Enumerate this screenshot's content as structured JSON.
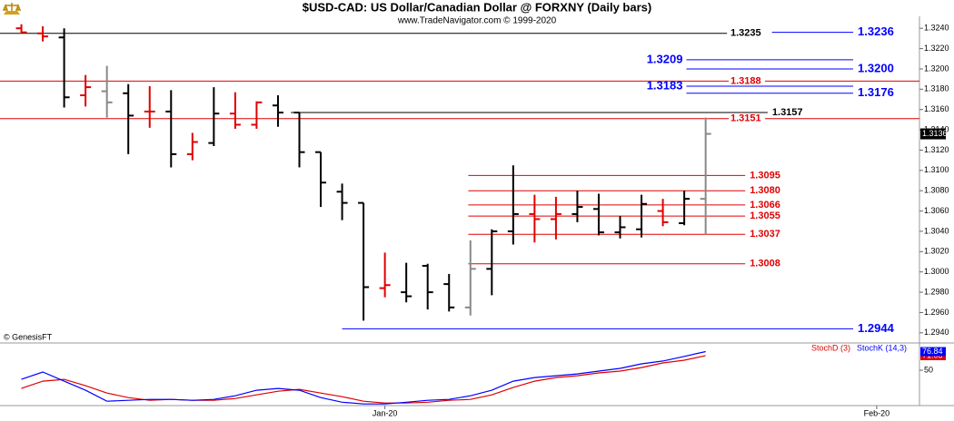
{
  "chart_data": {
    "type": "ohlc",
    "title": "$USD-CAD:  US Dollar/Canadian Dollar @ FORXNY  (Daily bars)",
    "subtitle": "www.TradeNavigator.com © 1999-2020",
    "credit": "© GenesisFT",
    "xlim": [
      -1,
      42
    ],
    "xticks": [
      {
        "value": 17,
        "label": "Jan-20"
      },
      {
        "value": 40,
        "label": "Feb-20"
      }
    ],
    "ylim": [
      1.293,
      1.325
    ],
    "yticks": [
      {
        "value": 1.294,
        "label": "1.2940"
      },
      {
        "value": 1.296,
        "label": "1.2960"
      },
      {
        "value": 1.298,
        "label": "1.2980"
      },
      {
        "value": 1.3,
        "label": "1.3000"
      },
      {
        "value": 1.302,
        "label": "1.3020"
      },
      {
        "value": 1.304,
        "label": "1.3040"
      },
      {
        "value": 1.306,
        "label": "1.3060"
      },
      {
        "value": 1.308,
        "label": "1.3080"
      },
      {
        "value": 1.31,
        "label": "1.3100"
      },
      {
        "value": 1.312,
        "label": "1.3120"
      },
      {
        "value": 1.314,
        "label": "1.3140"
      },
      {
        "value": 1.316,
        "label": "1.3160"
      },
      {
        "value": 1.318,
        "label": "1.3180"
      },
      {
        "value": 1.32,
        "label": "1.3200"
      },
      {
        "value": 1.322,
        "label": "1.3220"
      },
      {
        "value": 1.324,
        "label": "1.3240"
      }
    ],
    "bars": {
      "open": [
        1.324,
        1.3235,
        1.3231,
        1.3174,
        1.3178,
        1.3176,
        1.3158,
        1.3158,
        1.3116,
        1.3127,
        1.3156,
        1.3145,
        1.3164,
        1.3157,
        1.3118,
        1.3079,
        1.3068,
        1.2984,
        1.298,
        1.3006,
        1.2988,
        1.2965,
        1.3003,
        1.304,
        1.3057,
        1.3052,
        1.3057,
        1.3062,
        1.3039,
        1.3042,
        1.306,
        1.3048,
        1.3072
      ],
      "high": [
        1.3244,
        1.3242,
        1.324,
        1.3194,
        1.3203,
        1.3185,
        1.3183,
        1.3179,
        1.3137,
        1.3182,
        1.3177,
        1.3168,
        1.3174,
        1.3157,
        1.3118,
        1.3087,
        1.3068,
        1.3019,
        1.3009,
        1.3008,
        1.2998,
        1.3031,
        1.3042,
        1.3105,
        1.3076,
        1.3074,
        1.308,
        1.3077,
        1.3055,
        1.3076,
        1.3072,
        1.308,
        1.3152
      ],
      "low": [
        1.3235,
        1.3227,
        1.3162,
        1.3163,
        1.3152,
        1.3116,
        1.3142,
        1.3103,
        1.311,
        1.3124,
        1.3141,
        1.3141,
        1.3143,
        1.3103,
        1.3064,
        1.3051,
        1.2952,
        1.2975,
        1.297,
        1.2963,
        1.2961,
        1.2957,
        1.2977,
        1.3027,
        1.3029,
        1.3032,
        1.3049,
        1.3036,
        1.3033,
        1.3034,
        1.3045,
        1.3046,
        1.3037
      ],
      "close": [
        1.3236,
        1.3232,
        1.3172,
        1.3182,
        1.3167,
        1.3154,
        1.3158,
        1.3116,
        1.3128,
        1.3156,
        1.3145,
        1.3167,
        1.3157,
        1.3118,
        1.3088,
        1.3068,
        1.2985,
        1.2987,
        1.2976,
        1.298,
        1.2965,
        1.3003,
        1.304,
        1.3057,
        1.3052,
        1.3057,
        1.3064,
        1.3039,
        1.3044,
        1.3067,
        1.3049,
        1.3072,
        1.3136
      ],
      "colors": [
        "red",
        "red",
        "black",
        "red",
        "gray",
        "black",
        "red",
        "black",
        "red",
        "black",
        "red",
        "red",
        "black",
        "black",
        "black",
        "black",
        "black",
        "red",
        "black",
        "black",
        "black",
        "gray",
        "black",
        "black",
        "red",
        "red",
        "black",
        "black",
        "black",
        "black",
        "red",
        "black",
        "gray"
      ]
    },
    "levels": [
      {
        "value": 1.3235,
        "label": "1.3235",
        "color": "black",
        "from": -1,
        "to": 33,
        "label_side": "inline"
      },
      {
        "value": 1.3236,
        "label": "1.3236",
        "color": "blue",
        "from": 35.1,
        "to": 38.9,
        "label_side": "right"
      },
      {
        "value": 1.3209,
        "label": "1.3209",
        "color": "blue",
        "from": 31.1,
        "to": 38.9,
        "label_side": "left"
      },
      {
        "value": 1.32,
        "label": "1.3200",
        "color": "blue",
        "from": 31.1,
        "to": 38.9,
        "label_side": "right"
      },
      {
        "value": 1.3188,
        "label": "1.3188",
        "color": "red",
        "from": -1,
        "to": 42,
        "label_side": "inline"
      },
      {
        "value": 1.3183,
        "label": "1.3183",
        "color": "blue",
        "from": 31.1,
        "to": 38.9,
        "label_side": "left"
      },
      {
        "value": 1.3176,
        "label": "1.3176",
        "color": "blue",
        "from": 31.1,
        "to": 38.9,
        "label_side": "right"
      },
      {
        "value": 1.3157,
        "label": "1.3157",
        "color": "black",
        "from": 12.6,
        "to": 34.9,
        "label_side": "right"
      },
      {
        "value": 1.3151,
        "label": "1.3151",
        "color": "red",
        "from": -1,
        "to": 42,
        "label_side": "inline"
      },
      {
        "value": 1.3095,
        "label": "1.3095",
        "color": "red",
        "from": 20.9,
        "to": 33.85,
        "label_side": "right"
      },
      {
        "value": 1.308,
        "label": "1.3080",
        "color": "red",
        "from": 20.9,
        "to": 33.85,
        "label_side": "right"
      },
      {
        "value": 1.3066,
        "label": "1.3066",
        "color": "red",
        "from": 20.9,
        "to": 33.85,
        "label_side": "right"
      },
      {
        "value": 1.3055,
        "label": "1.3055",
        "color": "red",
        "from": 20.9,
        "to": 33.85,
        "label_side": "right"
      },
      {
        "value": 1.3037,
        "label": "1.3037",
        "color": "red",
        "from": 20.9,
        "to": 33.85,
        "label_side": "right"
      },
      {
        "value": 1.3008,
        "label": "1.3008",
        "color": "red",
        "from": 20.9,
        "to": 33.85,
        "label_side": "right"
      },
      {
        "value": 1.2944,
        "label": "1.2944",
        "color": "blue",
        "from": 15,
        "to": 38.9,
        "label_side": "right"
      }
    ],
    "indicator": {
      "type": "line",
      "ylim": [
        -1,
        88
      ],
      "yticks": [
        50
      ],
      "series": [
        {
          "name": "StochD (3)",
          "color": "red",
          "values": [
            23.7,
            34.2,
            36.8,
            27.6,
            17.1,
            10.5,
            6.6,
            7.9,
            6.6,
            6.6,
            9.2,
            14.5,
            19.7,
            22.4,
            17.1,
            11.8,
            5.3,
            2.6,
            2.6,
            3.9,
            6.6,
            7.9,
            14.5,
            25.0,
            34.2,
            39.5,
            42.1,
            46.1,
            48.7,
            53.9,
            60.5,
            64.5,
            71.08
          ]
        },
        {
          "name": "StochK (14,3)",
          "color": "blue",
          "values": [
            36.8,
            47.4,
            34.2,
            21.1,
            5.3,
            6.6,
            7.9,
            7.9,
            6.6,
            7.9,
            13.2,
            21.1,
            23.7,
            21.1,
            10.5,
            3.9,
            1.3,
            1.3,
            3.9,
            6.6,
            7.9,
            13.2,
            21.1,
            34.2,
            39.5,
            42.1,
            44.7,
            48.7,
            52.6,
            59.2,
            63.2,
            70.0,
            76.84
          ]
        }
      ]
    }
  }
}
